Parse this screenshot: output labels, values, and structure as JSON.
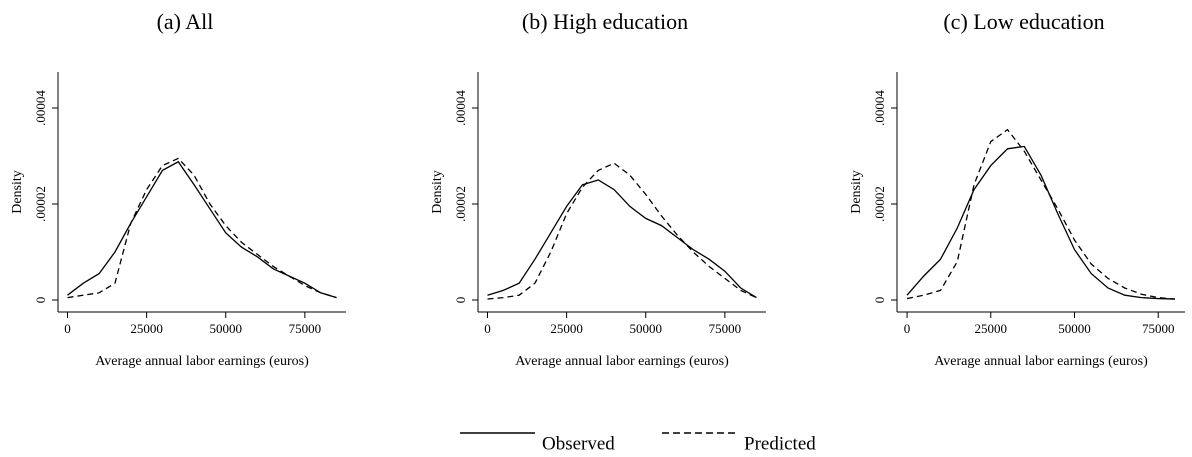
{
  "chart_data": [
    {
      "type": "line",
      "title": "(a) All",
      "xlabel": "Average annual labor earnings (euros)",
      "ylabel": "Density",
      "x": [
        0,
        5000,
        10000,
        15000,
        20000,
        25000,
        30000,
        35000,
        40000,
        45000,
        50000,
        55000,
        60000,
        65000,
        70000,
        75000,
        80000,
        85000
      ],
      "series": [
        {
          "name": "Observed",
          "color": "#000000",
          "dash": false,
          "values": [
            1e-06,
            3.5e-06,
            5.5e-06,
            1e-05,
            1.6e-05,
            2.15e-05,
            2.7e-05,
            2.88e-05,
            2.4e-05,
            1.9e-05,
            1.4e-05,
            1.1e-05,
            9e-06,
            6.5e-06,
            5e-06,
            3.5e-06,
            1.5e-06,
            5e-07
          ]
        },
        {
          "name": "Predicted",
          "color": "#000000",
          "dash": true,
          "values": [
            5e-07,
            1e-06,
            1.5e-06,
            3.5e-06,
            1.6e-05,
            2.3e-05,
            2.8e-05,
            2.95e-05,
            2.6e-05,
            2e-05,
            1.55e-05,
            1.2e-05,
            9.5e-06,
            7e-06,
            5e-06,
            3e-06,
            1.5e-06,
            5e-07
          ]
        }
      ],
      "xlim": [
        -3000,
        88000
      ],
      "xticks": [
        0,
        25000,
        50000,
        75000
      ],
      "ylim": [
        -2.5e-06,
        4.75e-05
      ],
      "yticks": [
        0,
        {
          "value": 2e-05,
          "label": ".00002"
        },
        {
          "value": 4e-05,
          "label": ".00004"
        }
      ]
    },
    {
      "type": "line",
      "title": "(b) High education",
      "xlabel": "Average annual labor earnings (euros)",
      "ylabel": "Density",
      "x": [
        0,
        5000,
        10000,
        15000,
        20000,
        25000,
        30000,
        35000,
        40000,
        45000,
        50000,
        55000,
        60000,
        65000,
        70000,
        75000,
        80000,
        85000
      ],
      "series": [
        {
          "name": "Observed",
          "color": "#000000",
          "dash": false,
          "values": [
            1e-06,
            2e-06,
            3.5e-06,
            8.5e-06,
            1.4e-05,
            1.95e-05,
            2.4e-05,
            2.5e-05,
            2.3e-05,
            1.95e-05,
            1.7e-05,
            1.55e-05,
            1.3e-05,
            1.05e-05,
            8.5e-06,
            6e-06,
            2.5e-06,
            5e-07
          ]
        },
        {
          "name": "Predicted",
          "color": "#000000",
          "dash": true,
          "values": [
            2e-07,
            5e-07,
            1e-06,
            3.5e-06,
            1e-05,
            1.8e-05,
            2.35e-05,
            2.7e-05,
            2.85e-05,
            2.6e-05,
            2.2e-05,
            1.75e-05,
            1.35e-05,
            1e-05,
            7e-06,
            4.5e-06,
            2e-06,
            5e-07
          ]
        }
      ],
      "xlim": [
        -3000,
        88000
      ],
      "xticks": [
        0,
        25000,
        50000,
        75000
      ],
      "ylim": [
        -2.5e-06,
        4.75e-05
      ],
      "yticks": [
        0,
        {
          "value": 2e-05,
          "label": ".00002"
        },
        {
          "value": 4e-05,
          "label": ".00004"
        }
      ]
    },
    {
      "type": "line",
      "title": "(c) Low education",
      "xlabel": "Average annual labor earnings (euros)",
      "ylabel": "Density",
      "x": [
        0,
        5000,
        10000,
        15000,
        20000,
        25000,
        30000,
        35000,
        40000,
        45000,
        50000,
        55000,
        60000,
        65000,
        70000,
        75000,
        80000
      ],
      "series": [
        {
          "name": "Observed",
          "color": "#000000",
          "dash": false,
          "values": [
            1e-06,
            5e-06,
            8.5e-06,
            1.5e-05,
            2.3e-05,
            2.8e-05,
            3.15e-05,
            3.2e-05,
            2.6e-05,
            1.8e-05,
            1.05e-05,
            5.5e-06,
            2.5e-06,
            1e-06,
            5e-07,
            3e-07,
            2e-07
          ]
        },
        {
          "name": "Predicted",
          "color": "#000000",
          "dash": true,
          "values": [
            3e-07,
            1e-06,
            2e-06,
            8e-06,
            2.4e-05,
            3.3e-05,
            3.55e-05,
            3.1e-05,
            2.5e-05,
            1.9e-05,
            1.25e-05,
            7.5e-06,
            4.5e-06,
            2.5e-06,
            1.2e-06,
            5e-07,
            2e-07
          ]
        }
      ],
      "xlim": [
        -3000,
        83000
      ],
      "xticks": [
        0,
        25000,
        50000,
        75000
      ],
      "ylim": [
        -2.5e-06,
        4.75e-05
      ],
      "yticks": [
        0,
        {
          "value": 2e-05,
          "label": ".00002"
        },
        {
          "value": 4e-05,
          "label": ".00004"
        }
      ]
    }
  ]
}
